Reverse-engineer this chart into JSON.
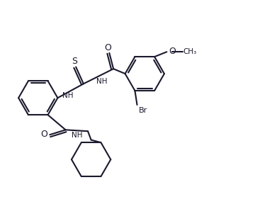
{
  "bg_color": "#ffffff",
  "line_color": "#1a1a2e",
  "line_width": 1.5,
  "fig_width": 3.84,
  "fig_height": 2.88,
  "dpi": 100,
  "xlim": [
    0,
    10
  ],
  "ylim": [
    0,
    7.5
  ]
}
